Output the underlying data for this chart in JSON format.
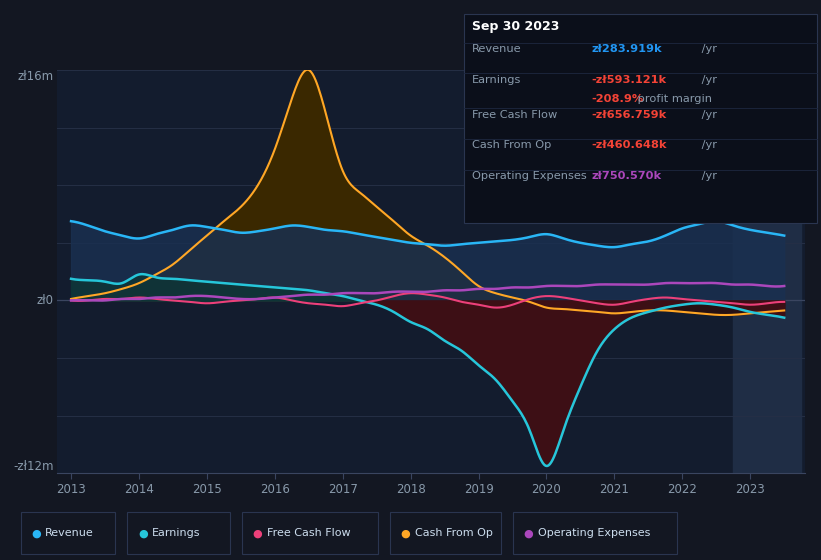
{
  "bg_color": "#131722",
  "chart_bg": "#131c2e",
  "panel_bg": "#1a2035",
  "info_box": {
    "date": "Sep 30 2023",
    "revenue_label": "Revenue",
    "revenue_val": "zł283.919k",
    "revenue_color": "#2196f3",
    "earnings_label": "Earnings",
    "earnings_val": "-zł593.121k",
    "earnings_color": "#f44336",
    "margin_val": "-208.9%",
    "margin_color": "#f44336",
    "margin_text": " profit margin",
    "fcf_label": "Free Cash Flow",
    "fcf_val": "-zł656.759k",
    "fcf_color": "#f44336",
    "cashop_label": "Cash From Op",
    "cashop_val": "-zł460.648k",
    "cashop_color": "#f44336",
    "opex_label": "Operating Expenses",
    "opex_val": "zł750.570k",
    "opex_color": "#ab47bc"
  },
  "legend": [
    {
      "label": "Revenue",
      "color": "#29b6f6"
    },
    {
      "label": "Earnings",
      "color": "#26c6da"
    },
    {
      "label": "Free Cash Flow",
      "color": "#ec407a"
    },
    {
      "label": "Cash From Op",
      "color": "#ffa726"
    },
    {
      "label": "Operating Expenses",
      "color": "#ab47bc"
    }
  ],
  "revenue_x": [
    2013,
    2013.25,
    2013.5,
    2013.75,
    2014,
    2014.25,
    2014.5,
    2014.75,
    2015,
    2015.25,
    2015.5,
    2015.75,
    2016,
    2016.25,
    2016.5,
    2016.75,
    2017,
    2017.25,
    2017.5,
    2017.75,
    2018,
    2018.25,
    2018.5,
    2018.75,
    2019,
    2019.25,
    2019.5,
    2019.75,
    2020,
    2020.25,
    2020.5,
    2020.75,
    2021,
    2021.25,
    2021.5,
    2021.75,
    2022,
    2022.25,
    2022.5,
    2022.75,
    2023,
    2023.25,
    2023.5
  ],
  "revenue_y": [
    5.5,
    5.2,
    4.8,
    4.5,
    4.3,
    4.6,
    4.9,
    5.2,
    5.1,
    4.9,
    4.7,
    4.8,
    5.0,
    5.2,
    5.1,
    4.9,
    4.8,
    4.6,
    4.4,
    4.2,
    4.0,
    3.9,
    3.8,
    3.9,
    4.0,
    4.1,
    4.2,
    4.4,
    4.6,
    4.3,
    4.0,
    3.8,
    3.7,
    3.9,
    4.1,
    4.5,
    5.0,
    5.3,
    5.5,
    5.2,
    4.9,
    4.7,
    4.5
  ],
  "earnings_x": [
    2013,
    2013.25,
    2013.5,
    2013.75,
    2014,
    2014.25,
    2014.5,
    2014.75,
    2015,
    2015.25,
    2015.5,
    2015.75,
    2016,
    2016.25,
    2016.5,
    2016.75,
    2017,
    2017.25,
    2017.5,
    2017.75,
    2018,
    2018.25,
    2018.5,
    2018.75,
    2019,
    2019.25,
    2019.5,
    2019.75,
    2020,
    2020.25,
    2020.5,
    2020.75,
    2021,
    2021.25,
    2021.5,
    2021.75,
    2022,
    2022.25,
    2022.5,
    2022.75,
    2023,
    2023.25,
    2023.5
  ],
  "earnings_y": [
    1.5,
    1.4,
    1.3,
    1.2,
    1.8,
    1.6,
    1.5,
    1.4,
    1.3,
    1.2,
    1.1,
    1.0,
    0.9,
    0.8,
    0.7,
    0.5,
    0.3,
    0.0,
    -0.3,
    -0.8,
    -1.5,
    -2.0,
    -2.8,
    -3.5,
    -4.5,
    -5.5,
    -7.0,
    -9.0,
    -11.5,
    -9.0,
    -6.0,
    -3.5,
    -2.0,
    -1.2,
    -0.8,
    -0.5,
    -0.3,
    -0.2,
    -0.3,
    -0.5,
    -0.8,
    -1.0,
    -1.2
  ],
  "fcf_x": [
    2013,
    2013.25,
    2013.5,
    2013.75,
    2014,
    2014.25,
    2014.5,
    2014.75,
    2015,
    2015.25,
    2015.5,
    2015.75,
    2016,
    2016.25,
    2016.5,
    2016.75,
    2017,
    2017.25,
    2017.5,
    2017.75,
    2018,
    2018.25,
    2018.5,
    2018.75,
    2019,
    2019.25,
    2019.5,
    2019.75,
    2020,
    2020.25,
    2020.5,
    2020.75,
    2021,
    2021.25,
    2021.5,
    2021.75,
    2022,
    2022.25,
    2022.5,
    2022.75,
    2023,
    2023.25,
    2023.5
  ],
  "fcf_y": [
    0.0,
    0.0,
    0.1,
    0.1,
    0.2,
    0.1,
    0.0,
    -0.1,
    -0.2,
    -0.1,
    0.0,
    0.1,
    0.2,
    0.0,
    -0.2,
    -0.3,
    -0.4,
    -0.2,
    0.0,
    0.3,
    0.5,
    0.4,
    0.2,
    -0.1,
    -0.3,
    -0.5,
    -0.3,
    0.1,
    0.3,
    0.2,
    0.0,
    -0.2,
    -0.3,
    -0.1,
    0.1,
    0.2,
    0.1,
    0.0,
    -0.1,
    -0.2,
    -0.3,
    -0.2,
    -0.1
  ],
  "cashop_x": [
    2013,
    2013.25,
    2013.5,
    2013.75,
    2014,
    2014.25,
    2014.5,
    2014.75,
    2015,
    2015.25,
    2015.5,
    2015.75,
    2016,
    2016.25,
    2016.5,
    2016.75,
    2017,
    2017.25,
    2017.5,
    2017.75,
    2018,
    2018.25,
    2018.5,
    2018.75,
    2019,
    2019.25,
    2019.5,
    2019.75,
    2020,
    2020.25,
    2020.5,
    2020.75,
    2021,
    2021.25,
    2021.5,
    2021.75,
    2022,
    2022.25,
    2022.5,
    2022.75,
    2023,
    2023.25,
    2023.5
  ],
  "cashop_y": [
    0.1,
    0.3,
    0.5,
    0.8,
    1.2,
    1.8,
    2.5,
    3.5,
    4.5,
    5.5,
    6.5,
    8.0,
    10.5,
    14.0,
    16.0,
    13.0,
    9.0,
    7.5,
    6.5,
    5.5,
    4.5,
    3.8,
    3.0,
    2.0,
    1.0,
    0.5,
    0.2,
    -0.1,
    -0.5,
    -0.6,
    -0.7,
    -0.8,
    -0.9,
    -0.8,
    -0.7,
    -0.7,
    -0.8,
    -0.9,
    -1.0,
    -1.0,
    -0.9,
    -0.8,
    -0.7
  ],
  "opex_x": [
    2013,
    2013.25,
    2013.5,
    2013.75,
    2014,
    2014.25,
    2014.5,
    2014.75,
    2015,
    2015.25,
    2015.5,
    2015.75,
    2016,
    2016.25,
    2016.5,
    2016.75,
    2017,
    2017.25,
    2017.5,
    2017.75,
    2018,
    2018.25,
    2018.5,
    2018.75,
    2019,
    2019.25,
    2019.5,
    2019.75,
    2020,
    2020.25,
    2020.5,
    2020.75,
    2021,
    2021.25,
    2021.5,
    2021.75,
    2022,
    2022.25,
    2022.5,
    2022.75,
    2023,
    2023.25,
    2023.5
  ],
  "opex_y": [
    0.0,
    0.0,
    0.0,
    0.1,
    0.1,
    0.2,
    0.2,
    0.3,
    0.3,
    0.2,
    0.1,
    0.1,
    0.2,
    0.3,
    0.4,
    0.4,
    0.5,
    0.5,
    0.5,
    0.6,
    0.6,
    0.6,
    0.7,
    0.7,
    0.8,
    0.8,
    0.9,
    0.9,
    1.0,
    1.0,
    1.0,
    1.1,
    1.1,
    1.1,
    1.1,
    1.2,
    1.2,
    1.2,
    1.2,
    1.1,
    1.1,
    1.0,
    1.0
  ],
  "highlight_x_start": 2022.75,
  "highlight_x_end": 2023.75,
  "ylim": [
    -12,
    16
  ],
  "xlim": [
    2012.8,
    2023.8
  ],
  "ytop_label": "zł16m",
  "yzero_label": "zł0",
  "ybot_label": "-zł12m"
}
